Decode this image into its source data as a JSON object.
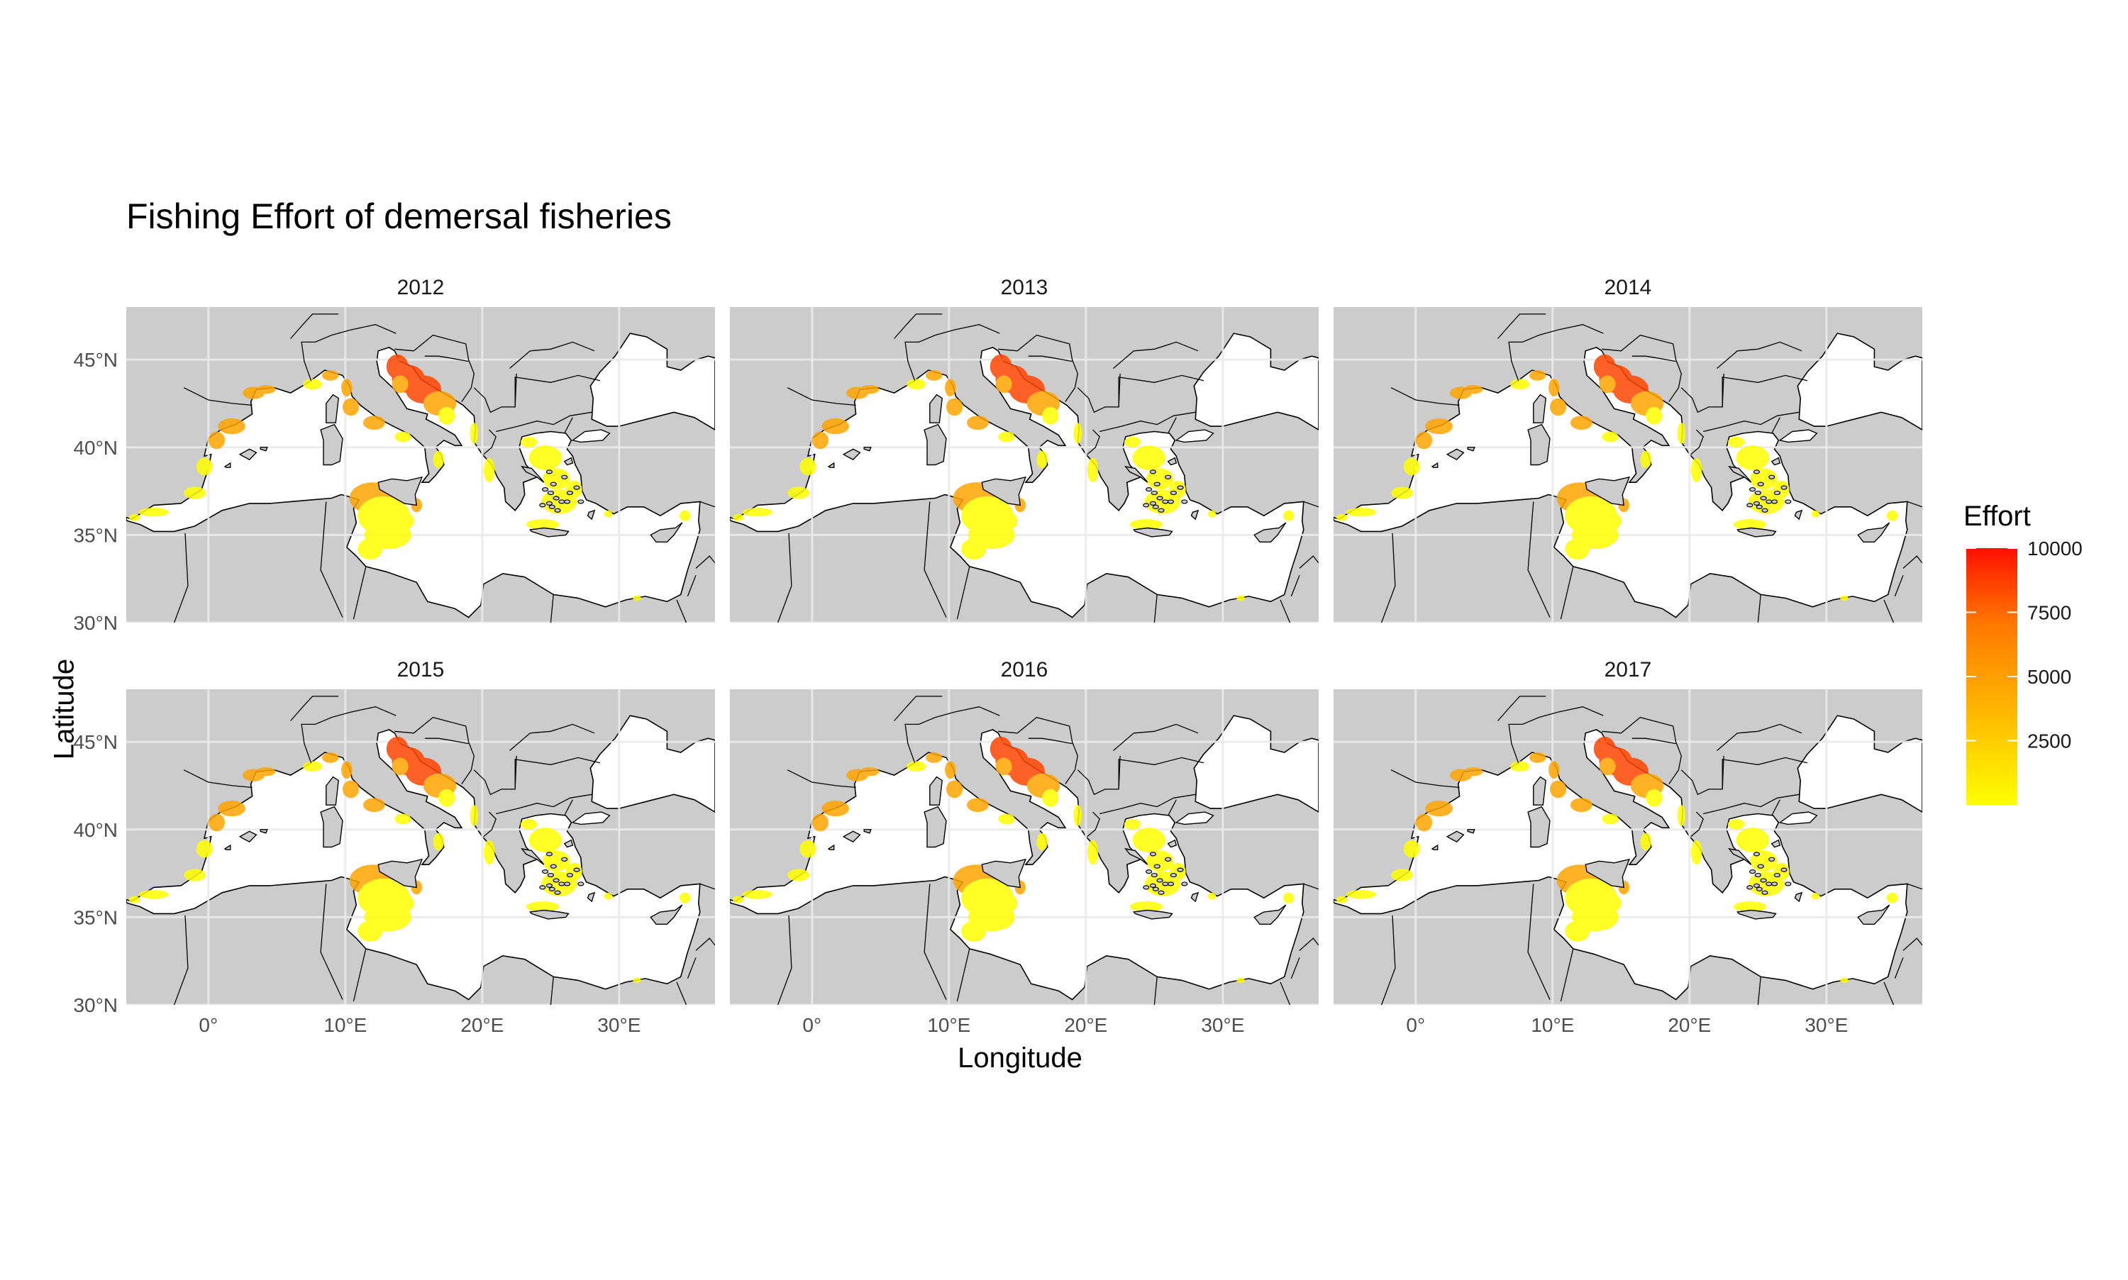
{
  "title": "Fishing Effort of demersal fisheries",
  "x_axis_label": "Longitude",
  "y_axis_label": "Latitude",
  "panels": [
    "2012",
    "2013",
    "2014",
    "2015",
    "2016",
    "2017"
  ],
  "x_ticks": [
    {
      "value": 0,
      "label": "0°"
    },
    {
      "value": 10,
      "label": "10°E"
    },
    {
      "value": 20,
      "label": "20°E"
    },
    {
      "value": 30,
      "label": "30°E"
    }
  ],
  "y_ticks": [
    {
      "value": 30,
      "label": "30°N"
    },
    {
      "value": 35,
      "label": "35°N"
    },
    {
      "value": 40,
      "label": "40°N"
    },
    {
      "value": 45,
      "label": "45°N"
    }
  ],
  "map_extent": {
    "lon": [
      -6,
      37
    ],
    "lat": [
      30,
      48
    ]
  },
  "legend": {
    "title": "Effort",
    "ticks": [
      "10000",
      "7500",
      "5000",
      "2500"
    ],
    "tick_values": [
      10000,
      7500,
      5000,
      2500
    ],
    "range": [
      0,
      10000
    ],
    "color_low": "#ffff00",
    "color_high": "#ff0000"
  },
  "colors": {
    "land": "#cccccc",
    "sea": "#ffffff",
    "grid": "#ebebeb",
    "effort_low": "#ffff00",
    "effort_mid": "#ffa500",
    "effort_high": "#ff4500"
  }
}
